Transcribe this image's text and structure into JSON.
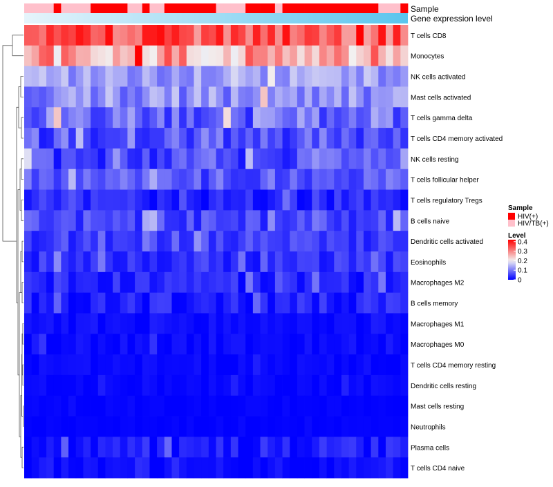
{
  "chart_data": {
    "type": "heatmap",
    "title": "",
    "annotation_tracks": [
      {
        "label": "Sample"
      },
      {
        "label": "Gene expression level",
        "gradient": [
          "#e6f4fb",
          "#5bc5ee"
        ]
      }
    ],
    "sample_codes": "1111011110000011011000000011110000100000000000001110",
    "rows": [
      {
        "label": "T cells CD8",
        "mean": 0.34,
        "spread": 0.07
      },
      {
        "label": "Monocytes",
        "mean": 0.27,
        "spread": 0.08
      },
      {
        "label": "NK cells activated",
        "mean": 0.13,
        "spread": 0.04
      },
      {
        "label": "Mast cells activated",
        "mean": 0.12,
        "spread": 0.05
      },
      {
        "label": "T cells gamma delta",
        "mean": 0.09,
        "spread": 0.06
      },
      {
        "label": "T cells CD4 memory activated",
        "mean": 0.07,
        "spread": 0.05
      },
      {
        "label": "NK cells resting",
        "mean": 0.06,
        "spread": 0.05
      },
      {
        "label": "T cells follicular helper",
        "mean": 0.07,
        "spread": 0.04
      },
      {
        "label": "T cells regulatory  Tregs",
        "mean": 0.03,
        "spread": 0.03
      },
      {
        "label": "B cells naive",
        "mean": 0.06,
        "spread": 0.04
      },
      {
        "label": "Dendritic cells activated",
        "mean": 0.05,
        "spread": 0.03
      },
      {
        "label": "Eosinophils",
        "mean": 0.04,
        "spread": 0.03
      },
      {
        "label": "Macrophages M2",
        "mean": 0.03,
        "spread": 0.03
      },
      {
        "label": "B cells memory",
        "mean": 0.025,
        "spread": 0.03
      },
      {
        "label": "Macrophages M1",
        "mean": 0.01,
        "spread": 0.015
      },
      {
        "label": "Macrophages M0",
        "mean": 0.008,
        "spread": 0.015
      },
      {
        "label": "T cells CD4 memory resting",
        "mean": 0.005,
        "spread": 0.01
      },
      {
        "label": "Dendritic cells resting",
        "mean": 0.004,
        "spread": 0.01
      },
      {
        "label": "Mast cells resting",
        "mean": 0.002,
        "spread": 0.005
      },
      {
        "label": "Neutrophils",
        "mean": 0.001,
        "spread": 0.004
      },
      {
        "label": "Plasma cells",
        "mean": 0.02,
        "spread": 0.03
      },
      {
        "label": "T cells CD4 naive",
        "mean": 0.008,
        "spread": 0.015
      }
    ],
    "legend": {
      "sample": {
        "title": "Sample",
        "entries": [
          {
            "label": "HIV(+)",
            "color": "#ff0000"
          },
          {
            "label": "HIV/TB(+)",
            "color": "#ffc0cb"
          }
        ]
      },
      "level": {
        "title": "Level",
        "ticks": [
          "0.4",
          "0.3",
          "0.2",
          "0.1",
          "0"
        ],
        "tick_values": [
          0.4,
          0.3,
          0.2,
          0.1,
          0
        ],
        "range": [
          0,
          0.42
        ],
        "colors": {
          "low": "#0000ff",
          "mid": "#f2f2f2",
          "high": "#ff0000",
          "mid_value": 0.2
        }
      }
    }
  }
}
